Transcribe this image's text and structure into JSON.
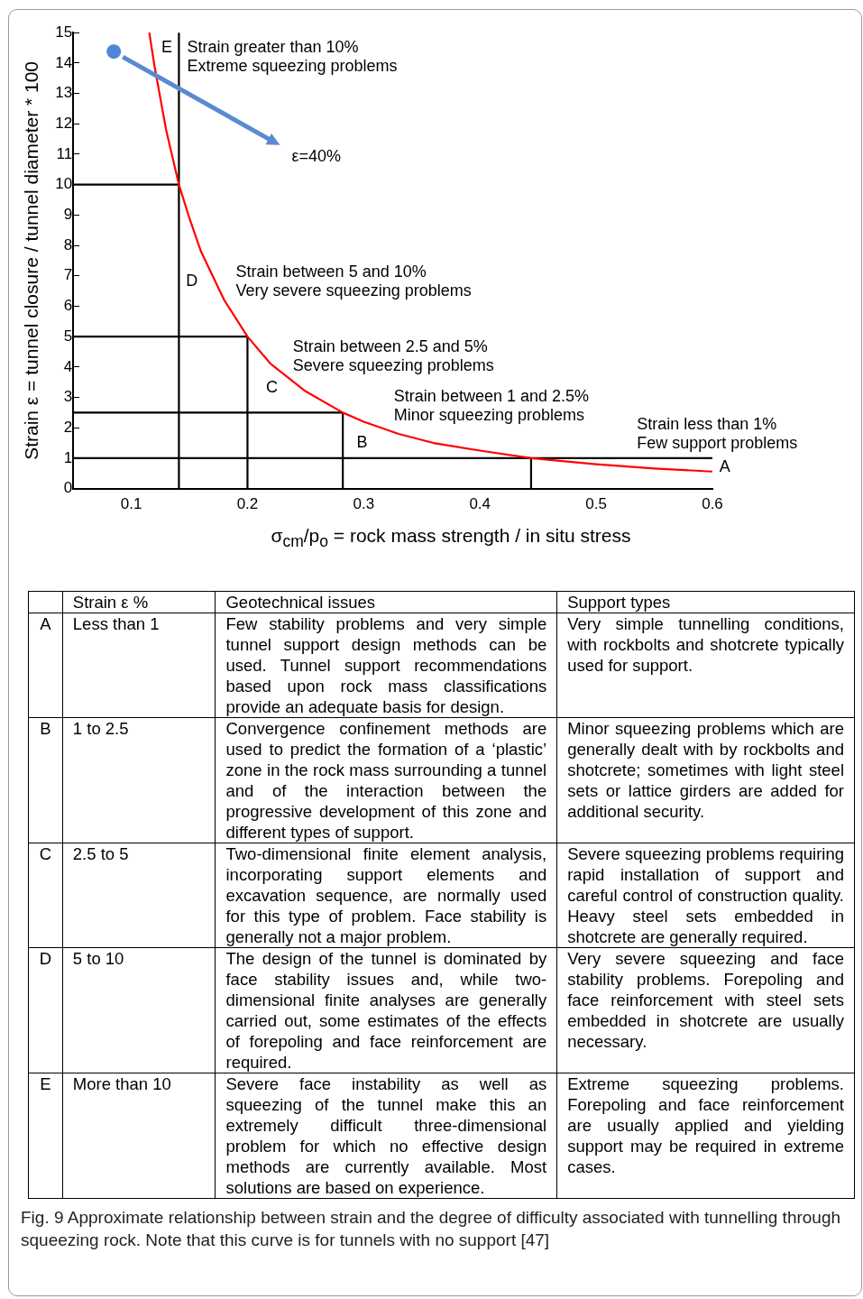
{
  "chart_data": [
    {
      "type": "line",
      "xlabel": "σ$_{cm}$/p$_{o}$ = rock mass strength / in situ stress",
      "ylabel": "Strain ε = tunnel closure / tunnel diameter * 100",
      "xlim": [
        0.05,
        0.6
      ],
      "xticks": [
        0.1,
        0.2,
        0.3,
        0.4,
        0.5,
        0.6
      ],
      "ylim": [
        0,
        15
      ],
      "yticks": [
        0,
        1,
        2,
        3,
        4,
        5,
        6,
        7,
        8,
        9,
        10,
        11,
        12,
        13,
        14,
        15
      ],
      "grid": false,
      "legend": false,
      "marker": "none",
      "line_style": "solid",
      "series": [
        {
          "color": "#ff0000",
          "x": [
            0.1155,
            0.12,
            0.13,
            0.141,
            0.15,
            0.16,
            0.18,
            0.2,
            0.22,
            0.25,
            0.282,
            0.3,
            0.33,
            0.36,
            0.4,
            0.444,
            0.5,
            0.55,
            0.6
          ],
          "values": [
            15,
            13.9,
            11.8,
            10,
            8.9,
            7.8,
            6.2,
            5,
            4.1,
            3.2,
            2.5,
            2.2,
            1.8,
            1.5,
            1.25,
            1,
            0.8,
            0.66,
            0.56
          ]
        },
        {
          "color": "#000000",
          "x": [
            0.141,
            0.141
          ],
          "values": [
            0,
            15
          ]
        },
        {
          "color": "#000000",
          "x": [
            0.05,
            0.141
          ],
          "values": [
            10,
            10
          ]
        },
        {
          "color": "#000000",
          "x": [
            0.05,
            0.2
          ],
          "values": [
            5,
            5
          ]
        },
        {
          "color": "#000000",
          "x": [
            0.2,
            0.2
          ],
          "values": [
            0,
            5
          ]
        },
        {
          "color": "#000000",
          "x": [
            0.05,
            0.282
          ],
          "values": [
            2.5,
            2.5
          ]
        },
        {
          "color": "#000000",
          "x": [
            0.282,
            0.282
          ],
          "values": [
            0,
            2.5
          ]
        },
        {
          "color": "#000000",
          "x": [
            0.05,
            0.6
          ],
          "values": [
            1,
            1
          ]
        },
        {
          "color": "#000000",
          "x": [
            0.444,
            0.444
          ],
          "values": [
            0,
            1
          ]
        }
      ],
      "annotations": [
        "E",
        "Strain greater than 10%\nExtreme squeezing problems",
        "ε=40%",
        "D",
        "Strain between 5 and 10%\nVery severe squeezing problems",
        "C",
        "Strain between 2.5 and 5%\nSevere squeezing problems",
        "B",
        "Strain between 1 and 2.5%\nMinor squeezing problems",
        "Strain less than 1%\nFew support problems",
        "A"
      ]
    },
    {
      "type": "other",
      "categories": [
        null,
        "Strain ε %",
        "Geotechnical issues",
        "Support types"
      ],
      "y_categories": [
        "A",
        "B",
        "C",
        "D",
        "E"
      ],
      "cell_labels": [
        [
          "Less than 1",
          "Few stability problems and very simple tunnel support design methods can be used. Tunnel support recommendations based upon rock mass classifications provide an adequate basis for design.",
          "Very simple tunnelling conditions, with rockbolts and shotcrete typically used for support."
        ],
        [
          "1 to 2.5",
          "Convergence confinement methods are used to predict the formation of a ‘plastic’ zone in the rock mass surrounding a tunnel and of the interaction between the progressive development of this zone and different types of support.",
          "Minor squeezing problems which are generally dealt with by rockbolts and shotcrete; sometimes with light steel sets or lattice girders are added for additional security."
        ],
        [
          "2.5 to 5",
          "Two-dimensional finite element analysis, incorporating support elements and excavation sequence, are normally used for this type of problem. Face stability is generally not a major problem.",
          "Severe squeezing problems requiring rapid installation of support and careful control of construction quality. Heavy steel sets embedded in shotcrete are generally required."
        ],
        [
          "5 to 10",
          "The design of the tunnel is dominated by face stability issues and, while two-dimensional finite analyses are generally carried out, some estimates of the effects of forepoling and face reinforcement are required.",
          "Very severe squeezing and face stability problems. Forepoling and face reinforcement with steel sets embedded in shotcrete are usually necessary."
        ],
        [
          "More than 10",
          "Severe face instability as well as squeezing of the tunnel make this an extremely difficult three-dimensional problem for which no effective design methods are currently available. Most solutions are based on experience.",
          "Extreme squeezing problems. Forepoling and face reinforcement are usually applied and yielding support may be required in extreme cases."
        ]
      ],
      "annotations": [
        "Fig. 9  Approximate relationship between strain and the degree of difficulty associated with tunnelling through squeezing rock. Note that this curve is for tunnels with no support [47]"
      ]
    }
  ]
}
